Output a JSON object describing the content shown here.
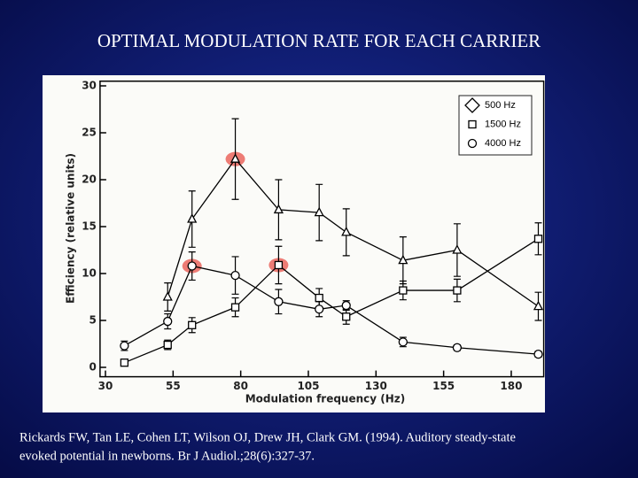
{
  "chart_data": {
    "type": "line",
    "title": "OPTIMAL MODULATION RATE FOR EACH CARRIER",
    "caption": [
      "Rickards FW, Tan LE, Cohen LT, Wilson OJ, Drew JH, Clark GM. (1994). Auditory steady-state",
      "evoked potential in newborns. Br J Audiol.;28(6):327-37."
    ],
    "x_label": "Modulation frequency (Hz)",
    "y_label": "Efficiency (relative units)",
    "xlim": [
      28,
      192
    ],
    "ylim": [
      -1,
      30.5
    ],
    "xticks": [
      30,
      55,
      80,
      105,
      130,
      155,
      180
    ],
    "yticks": [
      0,
      5,
      10,
      15,
      20,
      25,
      30
    ],
    "color": "#000000",
    "highlight_color": "#e8514a",
    "series": [
      {
        "name": "500 Hz",
        "marker": "triangle",
        "legend_marker": "diamond",
        "highlight": 2,
        "x": [
          53,
          62,
          78,
          94,
          109,
          119,
          140,
          160,
          190
        ],
        "values": [
          7.5,
          15.8,
          22.2,
          16.8,
          16.5,
          14.4,
          11.4,
          12.5,
          6.5
        ],
        "errors": [
          1.5,
          3,
          4.3,
          3.2,
          3,
          2.5,
          2.5,
          2.8,
          1.5
        ]
      },
      {
        "name": "1500 Hz",
        "marker": "square",
        "legend_marker": "square",
        "highlight": 4,
        "x": [
          37,
          53,
          62,
          78,
          94,
          109,
          119,
          140,
          160,
          190
        ],
        "values": [
          0.5,
          2.4,
          4.5,
          6.4,
          10.9,
          7.4,
          5.4,
          8.2,
          8.2,
          13.7
        ],
        "errors": [
          0.3,
          0.5,
          0.8,
          1,
          2,
          1,
          0.8,
          1,
          1.2,
          1.7
        ]
      },
      {
        "name": "4000 Hz",
        "marker": "circle",
        "legend_marker": "circle",
        "highlight": 2,
        "x": [
          37,
          53,
          62,
          78,
          94,
          109,
          119,
          140,
          160,
          190
        ],
        "values": [
          2.3,
          4.9,
          10.8,
          9.8,
          7.0,
          6.2,
          6.6,
          2.7,
          2.1,
          1.4
        ],
        "errors": [
          0.5,
          0.8,
          1.5,
          2,
          1.3,
          0.8,
          0.5,
          0.5,
          0.3,
          0.3
        ]
      }
    ]
  }
}
